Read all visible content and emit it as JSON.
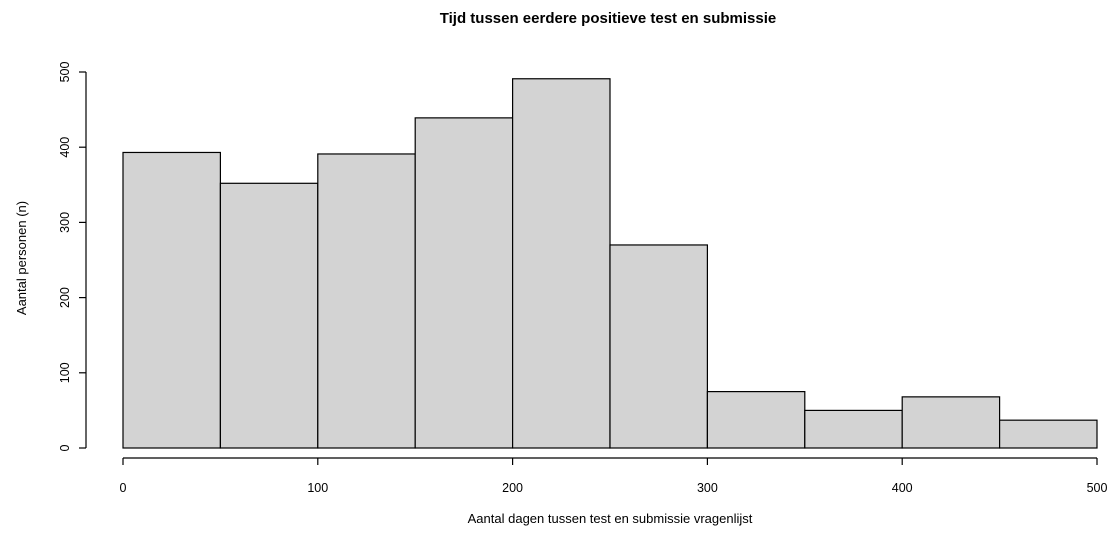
{
  "chart_data": {
    "type": "bar",
    "title": "Tijd tussen eerdere positieve test en submissie",
    "xlabel": "Aantal dagen tussen test en submissie vragenlijst",
    "ylabel": "Aantal personen (n)",
    "bin_edges": [
      0,
      50,
      100,
      150,
      200,
      250,
      300,
      350,
      400,
      450,
      500
    ],
    "values": [
      393,
      352,
      391,
      439,
      491,
      270,
      75,
      50,
      68,
      37
    ],
    "xlim": [
      0,
      500
    ],
    "ylim": [
      0,
      500
    ],
    "x_ticks": [
      0,
      100,
      200,
      300,
      400,
      500
    ],
    "y_ticks": [
      0,
      100,
      200,
      300,
      400,
      500
    ],
    "grid": false,
    "bar_color": "#d3d3d3",
    "edge_color": "#000000"
  }
}
